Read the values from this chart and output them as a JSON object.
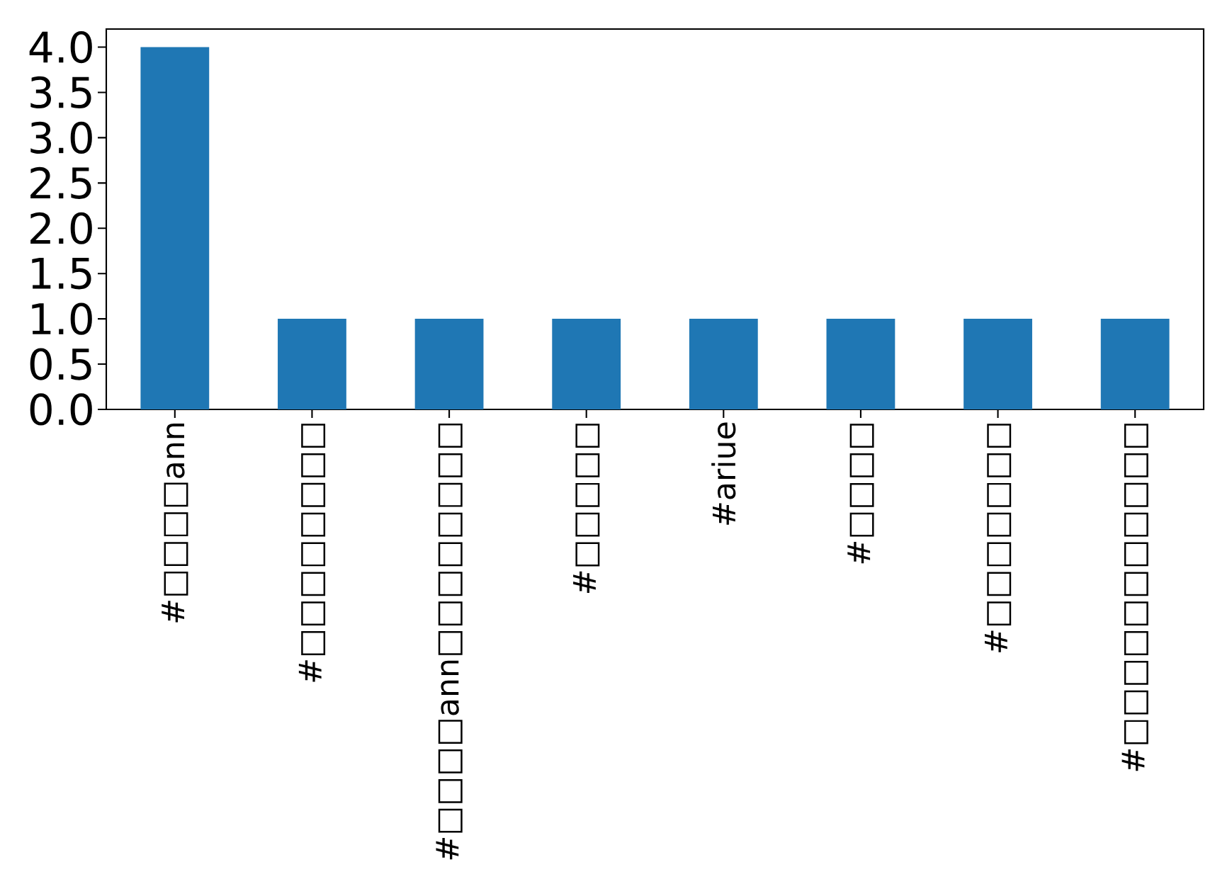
{
  "chart_data": {
    "type": "bar",
    "categories": [
      "#□□□□ann",
      "#□□□□□□□□",
      "#□□□□ann□□□□□□□□",
      "#□□□□□",
      "#ariue",
      "#□□□□",
      "#□□□□□□□",
      "#□□□□□□□□□□□"
    ],
    "values": [
      4,
      1,
      1,
      1,
      1,
      1,
      1,
      1
    ],
    "color": "#1f77b4",
    "ylim": [
      0,
      4.2
    ],
    "yticks": [
      {
        "value": 0,
        "label": "0.0"
      },
      {
        "value": 0.5,
        "label": "0.5"
      },
      {
        "value": 1,
        "label": "1.0"
      },
      {
        "value": 1.5,
        "label": "1.5"
      },
      {
        "value": 2,
        "label": "2.0"
      },
      {
        "value": 2.5,
        "label": "2.5"
      },
      {
        "value": 3,
        "label": "3.0"
      },
      {
        "value": 3.5,
        "label": "3.5"
      },
      {
        "value": 4,
        "label": "4.0"
      }
    ]
  }
}
